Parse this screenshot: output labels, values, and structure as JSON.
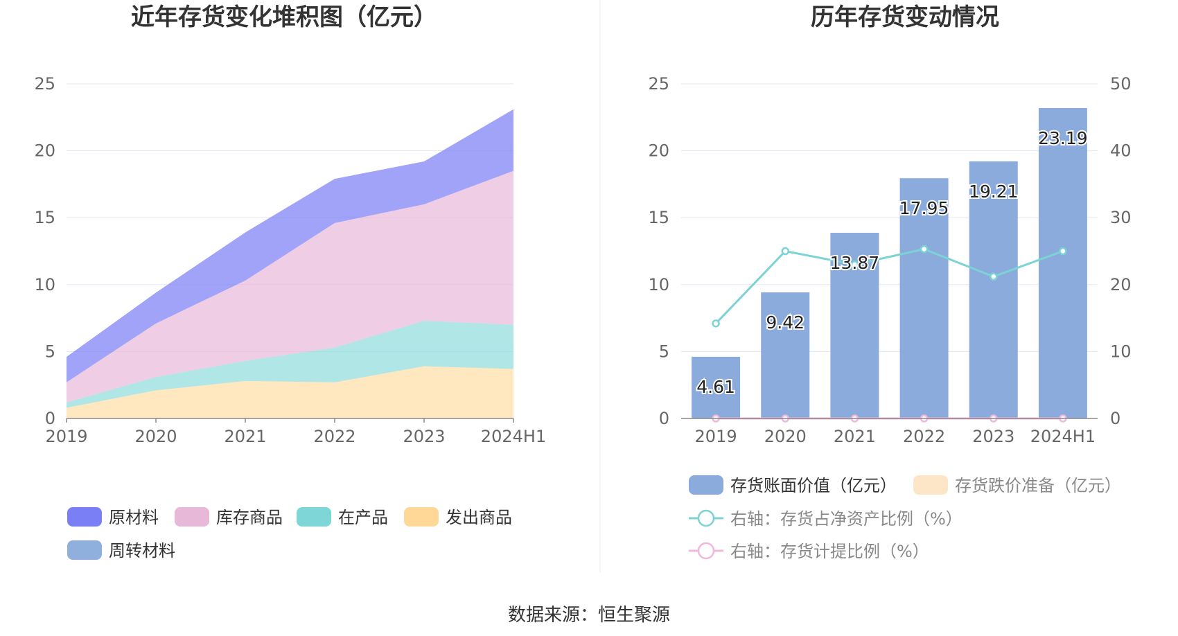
{
  "source": "数据来源：恒生聚源",
  "charts": {
    "left": {
      "title": "近年存货变化堆积图（亿元）",
      "legend": [
        "原材料",
        "库存商品",
        "在产品",
        "发出商品",
        "周转材料"
      ]
    },
    "right": {
      "title": "历年存货变动情况",
      "legend": [
        "存货账面价值（亿元）",
        "存货跌价准备（亿元）",
        "右轴：存货占净资产比例（%）",
        "右轴：存货计提比例（%）"
      ]
    }
  },
  "colors": {
    "raw_material": "#7b7ff5",
    "finished_goods": "#e8b8d8",
    "wip": "#7fd6d6",
    "shipped_goods": "#ffd898",
    "turnover_materials": "#8fb0dd",
    "bar": "#8aabdb",
    "ratio_line": "#7dd3d3",
    "provision_line": "#f0b8dc",
    "provision_legend": "#fde6c8",
    "grid": "#e1e5f2",
    "axis": "#888888"
  },
  "chart_data": [
    {
      "type": "area",
      "stacked": true,
      "title": "近年存货变化堆积图（亿元）",
      "categories": [
        "2019",
        "2020",
        "2021",
        "2022",
        "2023",
        "2024H1"
      ],
      "ylim": [
        0,
        25
      ],
      "yticks": [
        0,
        5,
        10,
        15,
        20,
        25
      ],
      "grid": true,
      "legend_position": "bottom",
      "series": [
        {
          "name": "发出商品",
          "values": [
            0.8,
            2.1,
            2.8,
            2.7,
            3.9,
            3.7
          ]
        },
        {
          "name": "在产品",
          "values": [
            0.4,
            1.0,
            1.5,
            2.6,
            3.4,
            3.3
          ]
        },
        {
          "name": "库存商品",
          "values": [
            1.5,
            4.0,
            6.0,
            9.3,
            8.7,
            11.5
          ]
        },
        {
          "name": "原材料",
          "values": [
            1.9,
            2.3,
            3.6,
            3.3,
            3.2,
            4.6
          ]
        },
        {
          "name": "周转材料",
          "values": [
            0,
            0,
            0,
            0,
            0,
            0
          ]
        }
      ]
    },
    {
      "type": "bar",
      "title": "历年存货变动情况",
      "categories": [
        "2019",
        "2020",
        "2021",
        "2022",
        "2023",
        "2024H1"
      ],
      "ylim": [
        0,
        25
      ],
      "yticks": [
        0,
        5,
        10,
        15,
        20,
        25
      ],
      "y2lim": [
        0,
        50
      ],
      "y2ticks": [
        0,
        10,
        20,
        30,
        40,
        50
      ],
      "grid": true,
      "legend_position": "bottom",
      "series": [
        {
          "name": "存货账面价值（亿元）",
          "type": "bar",
          "axis": "left",
          "values": [
            4.61,
            9.42,
            13.87,
            17.95,
            19.21,
            23.19
          ],
          "labels": [
            "4.61",
            "9.42",
            "13.87",
            "17.95",
            "19.21",
            "23.19"
          ]
        },
        {
          "name": "存货跌价准备（亿元）",
          "type": "bar",
          "axis": "left",
          "values": [
            0,
            0,
            0,
            0,
            0,
            0
          ]
        },
        {
          "name": "右轴：存货占净资产比例（%）",
          "type": "line",
          "axis": "right",
          "values": [
            14.2,
            25.0,
            23.0,
            25.3,
            21.2,
            25.0
          ]
        },
        {
          "name": "右轴：存货计提比例（%）",
          "type": "line",
          "axis": "right",
          "values": [
            0,
            0,
            0,
            0,
            0,
            0
          ]
        }
      ]
    }
  ]
}
